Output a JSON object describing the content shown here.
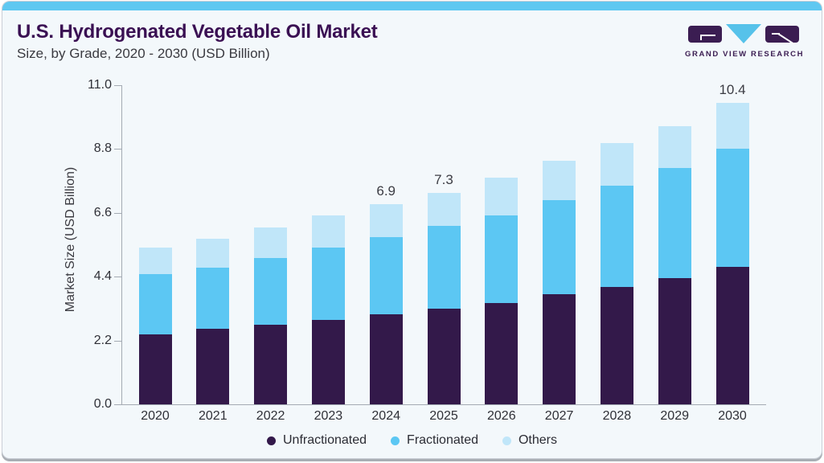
{
  "header": {
    "title": "U.S. Hydrogenated Vegetable Oil Market",
    "subtitle": "Size, by Grade, 2020 - 2030 (USD Billion)"
  },
  "logo": {
    "wordmark": "GRAND VIEW RESEARCH",
    "purple": "#3b1d52",
    "blue": "#56c2ea"
  },
  "colors": {
    "accent_bar": "#5fc8f1",
    "card_background": "#f3f8fb",
    "title_text": "#3a1053",
    "axis": "#a4abb3"
  },
  "chart_data": {
    "type": "bar",
    "stacked": true,
    "title": "U.S. Hydrogenated Vegetable Oil Market",
    "subtitle": "Size, by Grade, 2020 - 2030 (USD Billion)",
    "ylabel": "Market Size (USD Billion)",
    "xlabel": "",
    "grid": false,
    "legend_position": "bottom",
    "ylim": [
      0,
      11.0
    ],
    "yticks": [
      "0.0",
      "2.2",
      "4.4",
      "6.6",
      "8.8",
      "11.0"
    ],
    "categories": [
      "2020",
      "2021",
      "2022",
      "2023",
      "2024",
      "2025",
      "2026",
      "2027",
      "2028",
      "2029",
      "2030"
    ],
    "series": [
      {
        "name": "Unfractionated",
        "color": "#33194a",
        "values": [
          2.4,
          2.6,
          2.75,
          2.9,
          3.1,
          3.3,
          3.5,
          3.8,
          4.05,
          4.35,
          4.75
        ]
      },
      {
        "name": "Fractionated",
        "color": "#5cc7f3",
        "values": [
          2.1,
          2.1,
          2.3,
          2.5,
          2.65,
          2.85,
          3.0,
          3.25,
          3.5,
          3.8,
          4.05
        ]
      },
      {
        "name": "Others",
        "color": "#c0e6f9",
        "values": [
          0.9,
          1.0,
          1.05,
          1.1,
          1.15,
          1.15,
          1.3,
          1.35,
          1.45,
          1.45,
          1.6
        ]
      }
    ],
    "totals": [
      5.4,
      5.7,
      6.1,
      6.5,
      6.9,
      7.3,
      7.8,
      8.4,
      9.0,
      9.6,
      10.4
    ],
    "total_labels": [
      "",
      "",
      "",
      "",
      "6.9",
      "7.3",
      "",
      "",
      "",
      "",
      "10.4"
    ]
  }
}
